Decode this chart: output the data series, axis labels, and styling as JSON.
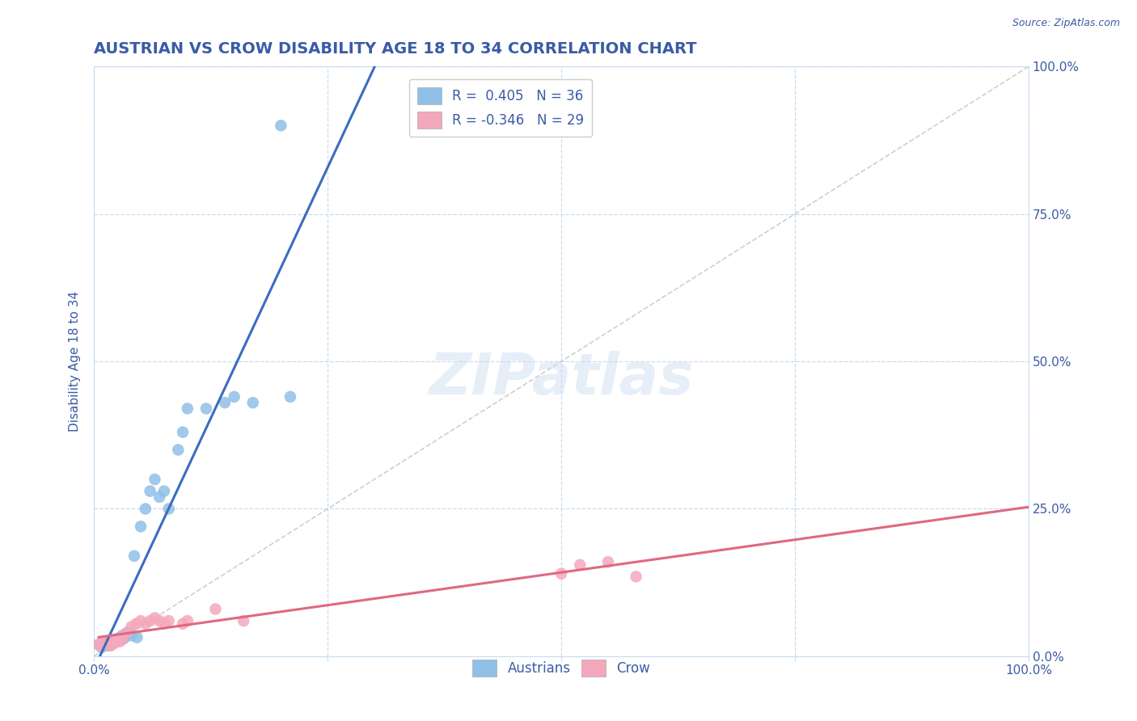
{
  "title": "AUSTRIAN VS CROW DISABILITY AGE 18 TO 34 CORRELATION CHART",
  "source": "Source: ZipAtlas.com",
  "ylabel": "Disability Age 18 to 34",
  "xlabel": "",
  "xlim": [
    0.0,
    1.0
  ],
  "ylim": [
    0.0,
    1.0
  ],
  "ytick_positions": [
    0.0,
    0.25,
    0.5,
    0.75,
    1.0
  ],
  "ytick_labels": [
    "0.0%",
    "25.0%",
    "50.0%",
    "75.0%",
    "100.0%"
  ],
  "title_color": "#3B5BA5",
  "axis_label_color": "#3B5BA5",
  "tick_color": "#3B5BA5",
  "watermark_text": "ZIPatlas",
  "legend_r1": "R =  0.405",
  "legend_n1": "N = 36",
  "legend_r2": "R = -0.346",
  "legend_n2": "N = 29",
  "austrians_color": "#90C0E8",
  "crow_color": "#F4A8BC",
  "trend_austrians_color": "#3B6CC0",
  "trend_crow_color": "#E06880",
  "diagonal_color": "#BBBBBB",
  "background_color": "#FFFFFF",
  "grid_color": "#C8DCF0",
  "austrians_x": [
    0.005,
    0.008,
    0.01,
    0.012,
    0.013,
    0.015,
    0.016,
    0.018,
    0.019,
    0.02,
    0.022,
    0.025,
    0.027,
    0.03,
    0.032,
    0.035,
    0.038,
    0.04,
    0.043,
    0.046,
    0.05,
    0.055,
    0.06,
    0.065,
    0.07,
    0.075,
    0.08,
    0.09,
    0.095,
    0.1,
    0.12,
    0.14,
    0.15,
    0.17,
    0.2,
    0.21
  ],
  "austrians_y": [
    0.02,
    0.015,
    0.018,
    0.02,
    0.022,
    0.018,
    0.025,
    0.022,
    0.02,
    0.025,
    0.028,
    0.03,
    0.028,
    0.035,
    0.03,
    0.038,
    0.04,
    0.035,
    0.17,
    0.032,
    0.22,
    0.25,
    0.28,
    0.3,
    0.27,
    0.28,
    0.25,
    0.35,
    0.38,
    0.42,
    0.42,
    0.43,
    0.44,
    0.43,
    0.9,
    0.44
  ],
  "crow_x": [
    0.005,
    0.008,
    0.01,
    0.012,
    0.015,
    0.018,
    0.02,
    0.022,
    0.025,
    0.028,
    0.03,
    0.035,
    0.04,
    0.045,
    0.05,
    0.055,
    0.06,
    0.065,
    0.07,
    0.075,
    0.08,
    0.095,
    0.1,
    0.13,
    0.16,
    0.5,
    0.52,
    0.55,
    0.58
  ],
  "crow_y": [
    0.02,
    0.018,
    0.025,
    0.022,
    0.02,
    0.018,
    0.025,
    0.022,
    0.028,
    0.025,
    0.03,
    0.04,
    0.05,
    0.055,
    0.06,
    0.055,
    0.06,
    0.065,
    0.06,
    0.055,
    0.06,
    0.055,
    0.06,
    0.08,
    0.06,
    0.14,
    0.155,
    0.16,
    0.135
  ]
}
